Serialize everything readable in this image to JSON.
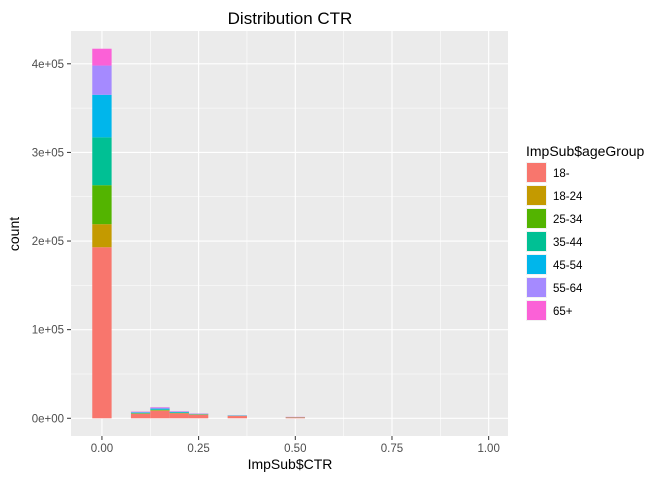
{
  "chart_data": {
    "type": "bar",
    "subtype": "stacked-histogram",
    "title": "Distribution CTR",
    "xlabel": "ImpSub$CTR",
    "ylabel": "count",
    "xlim": [
      -0.08,
      1.05
    ],
    "ylim": [
      -20000,
      437000
    ],
    "x_ticks": [
      0,
      0.25,
      0.5,
      0.75,
      1.0
    ],
    "x_tick_labels": [
      "0.00",
      "0.25",
      "0.50",
      "0.75",
      "1.00"
    ],
    "y_ticks": [
      0,
      100000,
      200000,
      300000,
      400000
    ],
    "y_tick_labels": [
      "0e+00",
      "1e+05",
      "2e+05",
      "3e+05",
      "4e+05"
    ],
    "grid": true,
    "legend": {
      "title": "ImpSub$ageGroup",
      "position": "right"
    },
    "bin_width": 0.05,
    "bins": [
      0.0,
      0.1,
      0.15,
      0.2,
      0.25,
      0.35,
      0.5
    ],
    "series": [
      {
        "name": "18-",
        "color": "#F8766D",
        "values": [
          193000,
          5000,
          8500,
          5500,
          4000,
          2500,
          1000
        ]
      },
      {
        "name": "18-24",
        "color": "#C49A00",
        "values": [
          26000,
          300,
          500,
          300,
          200,
          100,
          100
        ]
      },
      {
        "name": "25-34",
        "color": "#53B400",
        "values": [
          44000,
          300,
          400,
          300,
          200,
          100,
          100
        ]
      },
      {
        "name": "35-44",
        "color": "#00C094",
        "values": [
          54000,
          500,
          700,
          500,
          300,
          200,
          100
        ]
      },
      {
        "name": "45-54",
        "color": "#00B6EB",
        "values": [
          48000,
          600,
          800,
          500,
          300,
          200,
          100
        ]
      },
      {
        "name": "55-64",
        "color": "#A58AFF",
        "values": [
          33000,
          500,
          1100,
          500,
          300,
          200,
          100
        ]
      },
      {
        "name": "65+",
        "color": "#FB61D7",
        "values": [
          19000,
          400,
          500,
          300,
          200,
          100,
          100
        ]
      }
    ]
  }
}
